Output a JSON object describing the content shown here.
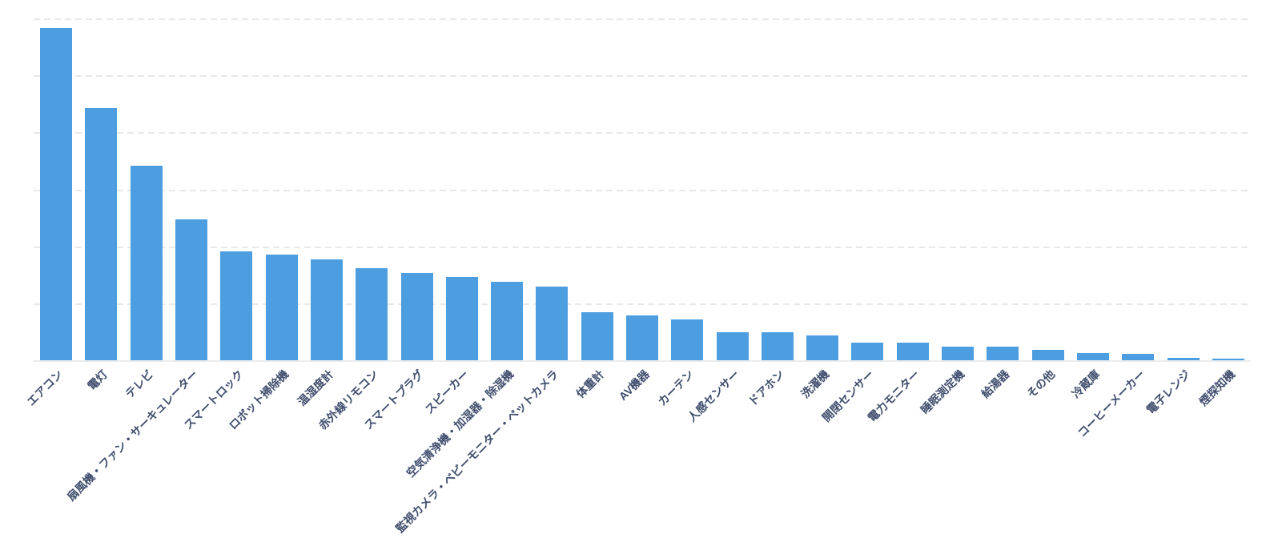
{
  "chart_data": {
    "type": "bar",
    "title": "",
    "xlabel": "",
    "ylabel": "",
    "legend_position": "none",
    "y_axis_tick_labels_visible": false,
    "grid": "horizontal dashed gridlines, 6 intervals from baseline to top",
    "ylim": [
      0,
      6
    ],
    "gridline_step": 1,
    "x_tick_rotation_deg": -45,
    "categories": [
      "エアコン",
      "電灯",
      "テレビ",
      "扇風機・ファン・サーキュレーター",
      "スマートロック",
      "ロボット掃除機",
      "温湿度計",
      "赤外線リモコン",
      "スマートプラグ",
      "スピーカー",
      "空気清浄機・加湿器・除湿機",
      "監視カメラ・ベビーモニター・ペットカメラ",
      "体重計",
      "AV機器",
      "カーテン",
      "人感センサー",
      "ドアホン",
      "洗濯機",
      "開閉センサー",
      "電力モニター",
      "睡眠測定機",
      "給湯器",
      "その他",
      "冷蔵庫",
      "コーヒーメーカー",
      "電子レンジ",
      "煙探知機"
    ],
    "values": [
      5.84,
      4.44,
      3.43,
      2.49,
      1.93,
      1.87,
      1.78,
      1.63,
      1.55,
      1.48,
      1.39,
      1.31,
      0.86,
      0.8,
      0.73,
      0.5,
      0.5,
      0.45,
      0.33,
      0.32,
      0.26,
      0.25,
      0.2,
      0.14,
      0.13,
      0.06,
      0.04
    ],
    "colors": {
      "bar": "#4D9EE0",
      "x_tick_label": "#3F4E6E",
      "gridline": "#E8E8E8",
      "axis_line": "#ECECEC",
      "background": "#FFFFFF"
    }
  }
}
